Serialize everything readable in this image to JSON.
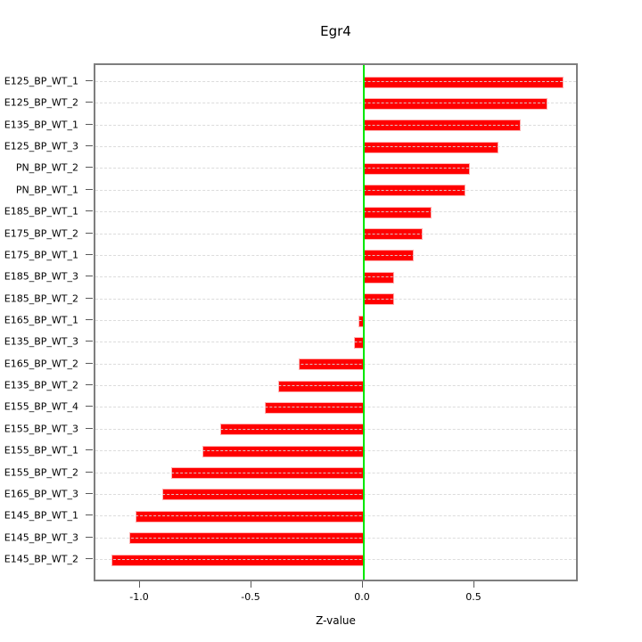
{
  "chart_data": {
    "type": "bar",
    "orientation": "horizontal",
    "title": "Egr4",
    "xlabel": "Z-value",
    "ylabel": "",
    "categories": [
      "E125_BP_WT_1",
      "E125_BP_WT_2",
      "E135_BP_WT_1",
      "E125_BP_WT_3",
      "PN_BP_WT_2",
      "PN_BP_WT_1",
      "E185_BP_WT_1",
      "E175_BP_WT_2",
      "E175_BP_WT_1",
      "E185_BP_WT_3",
      "E185_BP_WT_2",
      "E165_BP_WT_1",
      "E135_BP_WT_3",
      "E165_BP_WT_2",
      "E135_BP_WT_2",
      "E155_BP_WT_4",
      "E155_BP_WT_3",
      "E155_BP_WT_1",
      "E155_BP_WT_2",
      "E165_BP_WT_3",
      "E145_BP_WT_1",
      "E145_BP_WT_3",
      "E145_BP_WT_2"
    ],
    "values": [
      0.89,
      0.82,
      0.7,
      0.6,
      0.47,
      0.45,
      0.3,
      0.26,
      0.22,
      0.13,
      0.13,
      -0.02,
      -0.04,
      -0.29,
      -0.38,
      -0.44,
      -0.64,
      -0.72,
      -0.86,
      -0.9,
      -1.02,
      -1.05,
      -1.13
    ],
    "x_ticks": [
      {
        "value": -1.0,
        "label": "-1.0"
      },
      {
        "value": -0.5,
        "label": "-0.5"
      },
      {
        "value": 0.0,
        "label": "0.0"
      },
      {
        "value": 0.5,
        "label": "0.5"
      }
    ],
    "xlim": [
      -1.204,
      0.968
    ],
    "grid": true,
    "legend": false,
    "zero_line": true,
    "colors": {
      "bar": "#ff0000",
      "bar_border": "#ff9e9e",
      "zero_line": "#00e800",
      "grid": "#d8d8d8",
      "box_border": "#7e7e7e",
      "text": "#000000",
      "background": "#ffffff"
    }
  }
}
